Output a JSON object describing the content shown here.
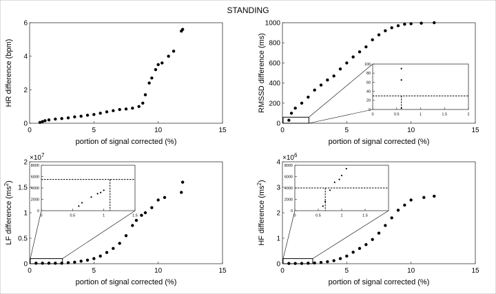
{
  "page_title": "STANDING",
  "chart_data": [
    {
      "type": "scatter",
      "id": "hr",
      "ylabel": "HR difference (bpm)",
      "xlabel": "portion of signal corrected (%)",
      "xlim": [
        0,
        15
      ],
      "ylim": [
        0,
        6
      ],
      "xticks": [
        "0",
        "5",
        "10",
        "15"
      ],
      "yticks": [
        "0",
        "2",
        "4",
        "6"
      ],
      "points": [
        [
          0.8,
          0.05
        ],
        [
          1.0,
          0.1
        ],
        [
          1.2,
          0.15
        ],
        [
          1.5,
          0.2
        ],
        [
          2.0,
          0.25
        ],
        [
          2.5,
          0.28
        ],
        [
          3.0,
          0.32
        ],
        [
          3.5,
          0.38
        ],
        [
          4.0,
          0.42
        ],
        [
          4.5,
          0.48
        ],
        [
          5.0,
          0.52
        ],
        [
          5.5,
          0.6
        ],
        [
          6.0,
          0.68
        ],
        [
          6.5,
          0.75
        ],
        [
          7.0,
          0.82
        ],
        [
          7.5,
          0.85
        ],
        [
          8.0,
          0.9
        ],
        [
          8.5,
          1.0
        ],
        [
          8.8,
          1.2
        ],
        [
          9.0,
          1.7
        ],
        [
          9.3,
          2.4
        ],
        [
          9.5,
          2.7
        ],
        [
          9.8,
          3.2
        ],
        [
          10.0,
          3.5
        ],
        [
          10.3,
          3.6
        ],
        [
          10.8,
          4.0
        ],
        [
          11.2,
          4.3
        ],
        [
          11.8,
          5.5
        ],
        [
          11.9,
          5.6
        ]
      ]
    },
    {
      "type": "scatter",
      "id": "rmssd",
      "ylabel": "RMSSD difference (ms)",
      "xlabel": "portion of signal corrected (%)",
      "xlim": [
        0,
        15
      ],
      "ylim": [
        0,
        1000
      ],
      "xticks": [
        "0",
        "5",
        "10",
        "15"
      ],
      "yticks": [
        "0",
        "200",
        "400",
        "600",
        "800",
        "1000"
      ],
      "points": [
        [
          0.5,
          30
        ],
        [
          0.7,
          100
        ],
        [
          1.0,
          150
        ],
        [
          1.5,
          200
        ],
        [
          2.0,
          260
        ],
        [
          2.5,
          330
        ],
        [
          3.0,
          380
        ],
        [
          3.5,
          430
        ],
        [
          4.0,
          470
        ],
        [
          4.5,
          540
        ],
        [
          5.0,
          600
        ],
        [
          5.5,
          660
        ],
        [
          6.0,
          710
        ],
        [
          6.5,
          760
        ],
        [
          7.0,
          830
        ],
        [
          7.5,
          880
        ],
        [
          8.0,
          920
        ],
        [
          8.5,
          950
        ],
        [
          9.0,
          970
        ],
        [
          9.5,
          985
        ],
        [
          10.0,
          990
        ],
        [
          10.8,
          995
        ],
        [
          11.8,
          1000
        ]
      ],
      "inset": {
        "xlim": [
          0,
          2
        ],
        "ylim": [
          0,
          100
        ],
        "xticks": [
          "0",
          "0.5",
          "1",
          "1.5",
          "2"
        ],
        "yticks": [
          "0",
          "20",
          "40",
          "60",
          "80",
          "100"
        ],
        "points": [
          [
            0.6,
            90
          ],
          [
            0.6,
            65
          ],
          [
            0.6,
            3
          ]
        ],
        "dashed_y": 30,
        "dashed_x": 0.6
      }
    },
    {
      "type": "scatter",
      "id": "lf",
      "ylabel": "LF difference (ms",
      "ylabel_sup": "2",
      "ylabel_end": ")",
      "exponent_base": "×10",
      "exponent_sup": "7",
      "xlabel": "portion of signal corrected (%)",
      "xlim": [
        0,
        15
      ],
      "ylim": [
        0,
        2
      ],
      "xticks": [
        "0",
        "5",
        "10",
        "15"
      ],
      "yticks": [
        "0",
        "0.5",
        "1",
        "1.5",
        "2"
      ],
      "points": [
        [
          0.5,
          0.01
        ],
        [
          1.0,
          0.01
        ],
        [
          1.5,
          0.01
        ],
        [
          2.0,
          0.01
        ],
        [
          2.5,
          0.01
        ],
        [
          3.0,
          0.02
        ],
        [
          3.5,
          0.03
        ],
        [
          4.0,
          0.05
        ],
        [
          4.5,
          0.07
        ],
        [
          5.0,
          0.1
        ],
        [
          5.5,
          0.15
        ],
        [
          6.0,
          0.22
        ],
        [
          6.5,
          0.3
        ],
        [
          7.0,
          0.4
        ],
        [
          7.5,
          0.55
        ],
        [
          8.0,
          0.75
        ],
        [
          8.3,
          0.85
        ],
        [
          8.7,
          0.95
        ],
        [
          9.0,
          1.0
        ],
        [
          9.5,
          1.1
        ],
        [
          10.0,
          1.25
        ],
        [
          10.5,
          1.3
        ],
        [
          11.8,
          1.4
        ],
        [
          11.9,
          1.6
        ]
      ],
      "inset": {
        "xlim": [
          0,
          1.5
        ],
        "ylim": [
          0,
          8000
        ],
        "xticks": [
          "0",
          "0.5",
          "1",
          "1.5"
        ],
        "yticks": [
          "0",
          "2000",
          "4000",
          "6000",
          "8000"
        ],
        "points": [
          [
            0.6,
            800
          ],
          [
            0.65,
            1400
          ],
          [
            0.8,
            2400
          ],
          [
            0.9,
            3000
          ],
          [
            0.95,
            3200
          ],
          [
            1.0,
            3600
          ]
        ],
        "dashed_y": 5500,
        "dashed_x": 1.1
      }
    },
    {
      "type": "scatter",
      "id": "hf",
      "ylabel": "HF difference (ms",
      "ylabel_sup": "2",
      "ylabel_end": ")",
      "exponent_base": "×10",
      "exponent_sup": "6",
      "xlabel": "portion of signal corrected (%)",
      "xlim": [
        0,
        15
      ],
      "ylim": [
        0,
        4
      ],
      "xticks": [
        "0",
        "5",
        "10",
        "15"
      ],
      "yticks": [
        "0",
        "1",
        "2",
        "3",
        "4"
      ],
      "points": [
        [
          0.5,
          0.01
        ],
        [
          1.0,
          0.01
        ],
        [
          1.5,
          0.01
        ],
        [
          2.0,
          0.02
        ],
        [
          2.5,
          0.03
        ],
        [
          3.0,
          0.05
        ],
        [
          3.5,
          0.08
        ],
        [
          4.0,
          0.12
        ],
        [
          4.5,
          0.2
        ],
        [
          5.0,
          0.3
        ],
        [
          5.5,
          0.45
        ],
        [
          6.0,
          0.6
        ],
        [
          6.5,
          0.75
        ],
        [
          7.0,
          0.95
        ],
        [
          7.5,
          1.2
        ],
        [
          8.0,
          1.5
        ],
        [
          8.5,
          1.8
        ],
        [
          9.0,
          2.1
        ],
        [
          9.5,
          2.3
        ],
        [
          10.0,
          2.5
        ],
        [
          11.0,
          2.6
        ],
        [
          11.8,
          2.65
        ]
      ],
      "inset": {
        "xlim": [
          0,
          2
        ],
        "ylim": [
          0,
          8000
        ],
        "xticks": [
          "0",
          "0.5",
          "1",
          "1.5"
        ],
        "yticks": [
          "0",
          "2000",
          "4000",
          "6000",
          "8000"
        ],
        "points": [
          [
            0.6,
            800
          ],
          [
            0.65,
            1600
          ],
          [
            0.75,
            3600
          ],
          [
            0.85,
            5000
          ],
          [
            0.95,
            5500
          ],
          [
            1.0,
            6200
          ],
          [
            1.1,
            7400
          ]
        ],
        "dashed_y": 4000,
        "dashed_x": 0.65
      }
    }
  ]
}
